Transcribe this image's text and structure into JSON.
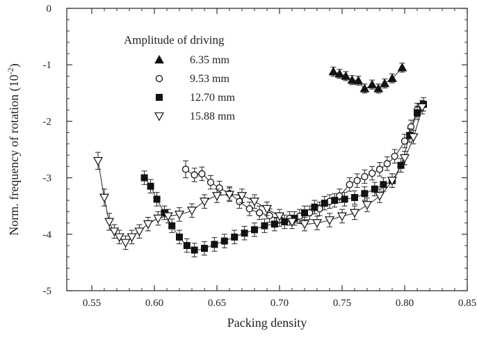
{
  "chart_data": {
    "type": "scatter",
    "xlabel": "Packing density",
    "ylabel": "Norm. frequency of rotation (10",
    "ylabel_sup": "-2",
    "ylabel_close": ")",
    "xlim": [
      0.53,
      0.85
    ],
    "ylim": [
      -5,
      0
    ],
    "xticks": [
      "0.55",
      "0.60",
      "0.65",
      "0.70",
      "0.75",
      "0.80",
      "0.85"
    ],
    "yticks": [
      "0",
      "-1",
      "-2",
      "-3",
      "-4",
      "-5"
    ],
    "grid": false,
    "legend": {
      "title": "Amplitude of driving",
      "placement": "top-left"
    },
    "series": [
      {
        "name": "6.35 mm",
        "marker": "triangle-up-filled",
        "x": [
          0.743,
          0.748,
          0.753,
          0.758,
          0.763,
          0.768,
          0.774,
          0.779,
          0.784,
          0.79,
          0.798
        ],
        "y": [
          -1.12,
          -1.16,
          -1.2,
          -1.27,
          -1.28,
          -1.42,
          -1.35,
          -1.42,
          -1.33,
          -1.24,
          -1.05
        ],
        "err": [
          0.08,
          0.08,
          0.08,
          0.08,
          0.08,
          0.08,
          0.08,
          0.08,
          0.08,
          0.08,
          0.08
        ]
      },
      {
        "name": "9.53 mm",
        "marker": "circle-open",
        "x": [
          0.625,
          0.632,
          0.638,
          0.645,
          0.652,
          0.66,
          0.668,
          0.676,
          0.684,
          0.692,
          0.7,
          0.708,
          0.716,
          0.724,
          0.732,
          0.74,
          0.748,
          0.756,
          0.762,
          0.768,
          0.774,
          0.78,
          0.786,
          0.792,
          0.8,
          0.805,
          0.81
        ],
        "y": [
          -2.85,
          -2.95,
          -2.93,
          -3.08,
          -3.18,
          -3.28,
          -3.42,
          -3.55,
          -3.62,
          -3.67,
          -3.74,
          -3.72,
          -3.68,
          -3.62,
          -3.55,
          -3.42,
          -3.32,
          -3.12,
          -3.05,
          -2.98,
          -2.92,
          -2.85,
          -2.75,
          -2.62,
          -2.35,
          -2.1,
          -1.8
        ],
        "err": [
          0.15,
          0.12,
          0.12,
          0.12,
          0.12,
          0.12,
          0.12,
          0.12,
          0.12,
          0.12,
          0.12,
          0.12,
          0.12,
          0.12,
          0.12,
          0.12,
          0.12,
          0.12,
          0.12,
          0.12,
          0.12,
          0.12,
          0.12,
          0.12,
          0.12,
          0.12,
          0.12
        ]
      },
      {
        "name": "12.70 mm",
        "marker": "square-filled",
        "x": [
          0.592,
          0.597,
          0.602,
          0.608,
          0.614,
          0.62,
          0.626,
          0.632,
          0.64,
          0.648,
          0.656,
          0.664,
          0.672,
          0.68,
          0.688,
          0.696,
          0.704,
          0.712,
          0.72,
          0.728,
          0.736,
          0.744,
          0.752,
          0.76,
          0.768,
          0.776,
          0.783,
          0.79,
          0.797,
          0.804,
          0.81,
          0.815
        ],
        "y": [
          -3.0,
          -3.15,
          -3.38,
          -3.62,
          -3.85,
          -4.05,
          -4.2,
          -4.28,
          -4.25,
          -4.18,
          -4.12,
          -4.05,
          -3.98,
          -3.92,
          -3.85,
          -3.82,
          -3.78,
          -3.72,
          -3.62,
          -3.52,
          -3.45,
          -3.4,
          -3.38,
          -3.35,
          -3.28,
          -3.2,
          -3.12,
          -3.05,
          -2.78,
          -2.25,
          -1.85,
          -1.7
        ],
        "err": [
          0.12,
          0.12,
          0.12,
          0.12,
          0.12,
          0.12,
          0.12,
          0.12,
          0.12,
          0.12,
          0.12,
          0.12,
          0.12,
          0.12,
          0.12,
          0.12,
          0.12,
          0.12,
          0.12,
          0.12,
          0.12,
          0.12,
          0.12,
          0.12,
          0.12,
          0.12,
          0.12,
          0.12,
          0.12,
          0.12,
          0.12,
          0.12
        ]
      },
      {
        "name": "15.88 mm",
        "marker": "triangle-down-open",
        "x": [
          0.555,
          0.56,
          0.564,
          0.568,
          0.572,
          0.577,
          0.582,
          0.588,
          0.595,
          0.603,
          0.611,
          0.62,
          0.63,
          0.64,
          0.65,
          0.66,
          0.67,
          0.68,
          0.69,
          0.7,
          0.71,
          0.72,
          0.73,
          0.74,
          0.75,
          0.76,
          0.77,
          0.78,
          0.79,
          0.8,
          0.807,
          0.814
        ],
        "y": [
          -2.7,
          -3.35,
          -3.78,
          -3.95,
          -4.05,
          -4.15,
          -4.05,
          -3.95,
          -3.82,
          -3.72,
          -3.68,
          -3.65,
          -3.58,
          -3.42,
          -3.32,
          -3.3,
          -3.32,
          -3.42,
          -3.55,
          -3.68,
          -3.78,
          -3.82,
          -3.8,
          -3.75,
          -3.68,
          -3.62,
          -3.48,
          -3.32,
          -3.05,
          -2.65,
          -2.28,
          -1.75
        ],
        "err": [
          0.15,
          0.15,
          0.15,
          0.12,
          0.12,
          0.12,
          0.12,
          0.12,
          0.12,
          0.12,
          0.12,
          0.12,
          0.12,
          0.12,
          0.12,
          0.12,
          0.12,
          0.12,
          0.12,
          0.12,
          0.12,
          0.12,
          0.12,
          0.12,
          0.12,
          0.12,
          0.12,
          0.12,
          0.12,
          0.12,
          0.12,
          0.12
        ]
      }
    ]
  }
}
